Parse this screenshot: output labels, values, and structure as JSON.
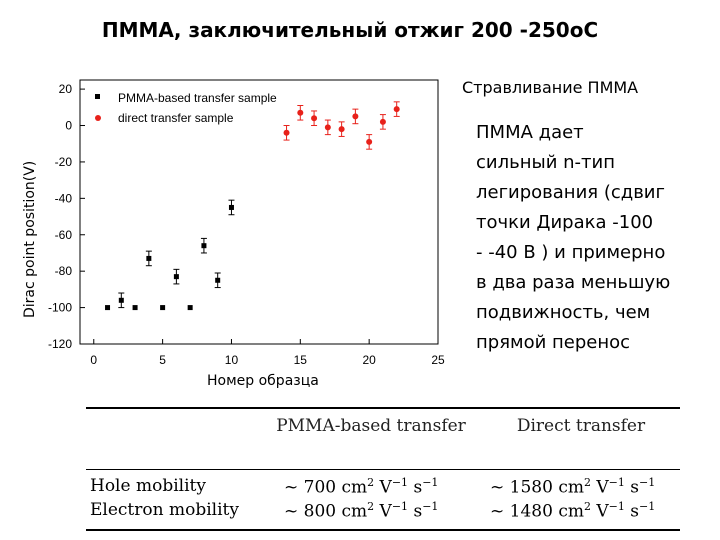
{
  "slide": {
    "title": "ПММА, заключительный отжиг 200 -250оС",
    "side_heading": "Стравливание ПММА",
    "side_lines": [
      "ПММА дает",
      "сильный n-тип",
      "легирования (сдвиг",
      "точки Дирака    -100",
      "- -40 В ) и примерно",
      "в два раза меньшую",
      "подвижность, чем",
      "прямой перенос"
    ]
  },
  "chart_data": {
    "type": "scatter",
    "title": "",
    "xlabel": "Номер образца",
    "ylabel": "Dirac point position(V)",
    "xlim": [
      -1,
      25
    ],
    "ylim": [
      -120,
      25
    ],
    "xticks": [
      "0",
      "5",
      "10",
      "15",
      "20",
      "25"
    ],
    "yticks": [
      "20",
      "0",
      "-20",
      "-40",
      "-60",
      "-80",
      "-100",
      "-120"
    ],
    "grid": false,
    "legend_position": "top-left",
    "series": [
      {
        "name": "PMMA-based transfer sample",
        "color": "#000000",
        "marker": "square",
        "points": [
          {
            "x": 1,
            "y": -100,
            "err": 0
          },
          {
            "x": 2,
            "y": -96,
            "err": 4
          },
          {
            "x": 3,
            "y": -100,
            "err": 0
          },
          {
            "x": 4,
            "y": -73,
            "err": 4
          },
          {
            "x": 5,
            "y": -100,
            "err": 0
          },
          {
            "x": 6,
            "y": -83,
            "err": 4
          },
          {
            "x": 7,
            "y": -100,
            "err": 0
          },
          {
            "x": 8,
            "y": -66,
            "err": 4
          },
          {
            "x": 9,
            "y": -85,
            "err": 4
          },
          {
            "x": 10,
            "y": -45,
            "err": 4
          }
        ]
      },
      {
        "name": "direct transfer sample",
        "color": "#e8211a",
        "marker": "circle",
        "points": [
          {
            "x": 14,
            "y": -4,
            "err": 4
          },
          {
            "x": 15,
            "y": 7,
            "err": 4
          },
          {
            "x": 16,
            "y": 4,
            "err": 4
          },
          {
            "x": 17,
            "y": -1,
            "err": 4
          },
          {
            "x": 18,
            "y": -2,
            "err": 4
          },
          {
            "x": 19,
            "y": 5,
            "err": 4
          },
          {
            "x": 20,
            "y": -9,
            "err": 4
          },
          {
            "x": 21,
            "y": 2,
            "err": 4
          },
          {
            "x": 22,
            "y": 9,
            "err": 4
          }
        ]
      }
    ]
  },
  "table": {
    "headers": [
      "PMMA-based transfer",
      "Direct transfer"
    ],
    "rows": [
      {
        "label": "Hole mobility",
        "pmma": "~ 700 cm",
        "direct": "~ 1580 cm"
      },
      {
        "label": "Electron mobility",
        "pmma": "~ 800 cm",
        "direct": "~ 1480 cm"
      }
    ],
    "unit_tail": " V",
    "unit_s": " s",
    "exp2": "2",
    "exp_neg1": "−1"
  }
}
